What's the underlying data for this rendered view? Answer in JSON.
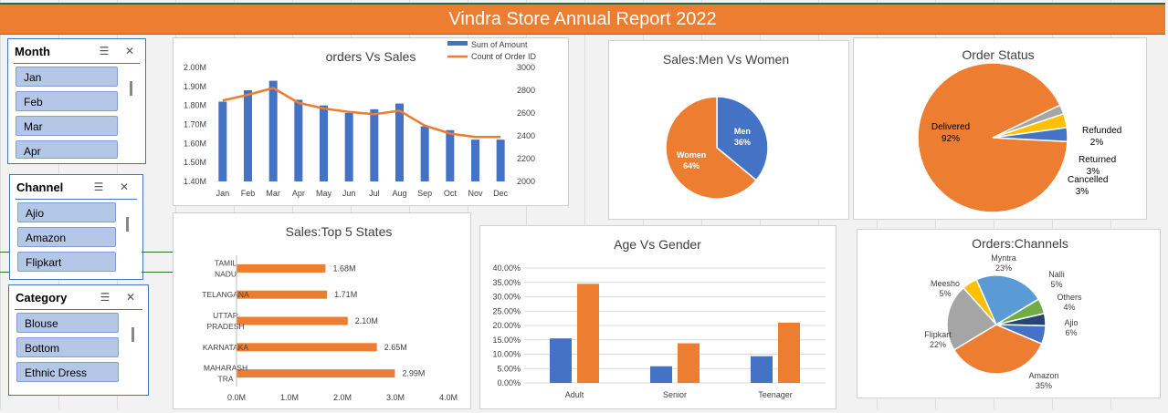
{
  "banner": {
    "title": "Vindra Store Annual Report 2022"
  },
  "slicers": {
    "month": {
      "title": "Month",
      "items": [
        "Jan",
        "Feb",
        "Mar",
        "Apr"
      ]
    },
    "channel": {
      "title": "Channel",
      "items": [
        "Ajio",
        "Amazon",
        "Flipkart"
      ]
    },
    "category": {
      "title": "Category",
      "items": [
        "Blouse",
        "Bottom",
        "Ethnic Dress"
      ]
    }
  },
  "colors": {
    "blue": "#4472c4",
    "orange": "#ed7d31",
    "gray": "#a5a5a5",
    "yellow": "#ffc000",
    "sky": "#5b9bd5",
    "green": "#70ad47",
    "navy": "#264478"
  },
  "chart_data": [
    {
      "id": "orders-vs-sales",
      "type": "bar",
      "title": "orders Vs Sales",
      "categories": [
        "Jan",
        "Feb",
        "Mar",
        "Apr",
        "May",
        "Jun",
        "Jul",
        "Aug",
        "Sep",
        "Oct",
        "Nov",
        "Dec"
      ],
      "series": [
        {
          "name": "Sum of Amount",
          "type": "bar",
          "axis": "left",
          "values": [
            1.82,
            1.88,
            1.93,
            1.83,
            1.8,
            1.76,
            1.78,
            1.81,
            1.69,
            1.67,
            1.62,
            1.62
          ]
        },
        {
          "name": "Count of Order ID",
          "type": "line",
          "axis": "right",
          "values": [
            2710,
            2760,
            2820,
            2690,
            2640,
            2610,
            2590,
            2620,
            2490,
            2420,
            2390,
            2390
          ]
        }
      ],
      "yleft": {
        "ylim": [
          1.4,
          2.0
        ],
        "ticks": [
          "1.40M",
          "1.50M",
          "1.60M",
          "1.70M",
          "1.80M",
          "1.90M",
          "2.00M"
        ]
      },
      "yright": {
        "ylim": [
          2000,
          3000
        ],
        "ticks": [
          "2000",
          "2200",
          "2400",
          "2600",
          "2800",
          "3000"
        ]
      },
      "legend": "top-right"
    },
    {
      "id": "sales-men-women",
      "type": "pie",
      "title": "Sales:Men Vs Women",
      "slices": [
        {
          "name": "Men",
          "value": 36,
          "label": "36%",
          "color": "#4472c4"
        },
        {
          "name": "Women",
          "value": 64,
          "label": "64%",
          "color": "#ed7d31"
        }
      ]
    },
    {
      "id": "order-status",
      "type": "pie",
      "title": "Order Status",
      "slices": [
        {
          "name": "Delivered",
          "value": 92,
          "label": "92%",
          "color": "#ed7d31"
        },
        {
          "name": "Refunded",
          "value": 2,
          "label": "2%",
          "color": "#a5a5a5"
        },
        {
          "name": "Returned",
          "value": 3,
          "label": "3%",
          "color": "#ffc000"
        },
        {
          "name": "Cancelled",
          "value": 3,
          "label": "3%",
          "color": "#4472c4"
        }
      ]
    },
    {
      "id": "top-5-states",
      "type": "bar",
      "orientation": "horizontal",
      "title": "Sales:Top 5 States",
      "categories": [
        [
          "TAMIL",
          "NADU"
        ],
        [
          "TELANGANA"
        ],
        [
          "UTTAR",
          "PRADESH"
        ],
        [
          "KARNATAKA"
        ],
        [
          "MAHARASH",
          "TRA"
        ]
      ],
      "values": [
        1.68,
        1.71,
        2.1,
        2.65,
        2.99
      ],
      "value_labels": [
        "1.68M",
        "1.71M",
        "2.10M",
        "2.65M",
        "2.99M"
      ],
      "xlim": [
        0,
        4.0
      ],
      "ticks": [
        "0.0M",
        "1.0M",
        "2.0M",
        "3.0M",
        "4.0M"
      ]
    },
    {
      "id": "age-vs-gender",
      "type": "bar",
      "title": "Age Vs Gender",
      "categories": [
        "Adult",
        "Senior",
        "Teenager"
      ],
      "series": [
        {
          "values": [
            15.5,
            5.8,
            9.3
          ],
          "color": "#4472c4"
        },
        {
          "values": [
            34.5,
            13.8,
            21.0
          ],
          "color": "#ed7d31"
        }
      ],
      "ylim": [
        0,
        40
      ],
      "ticks": [
        "0.00%",
        "5.00%",
        "10.00%",
        "15.00%",
        "20.00%",
        "25.00%",
        "30.00%",
        "35.00%",
        "40.00%"
      ]
    },
    {
      "id": "orders-channels",
      "type": "pie",
      "title": "Orders:Channels",
      "slices": [
        {
          "name": "Amazon",
          "value": 35,
          "label": "35%",
          "color": "#ed7d31"
        },
        {
          "name": "Flipkart",
          "value": 22,
          "label": "22%",
          "color": "#a5a5a5"
        },
        {
          "name": "Meesho",
          "value": 5,
          "label": "5%",
          "color": "#ffc000"
        },
        {
          "name": "Myntra",
          "value": 23,
          "label": "23%",
          "color": "#5b9bd5"
        },
        {
          "name": "Nalli",
          "value": 5,
          "label": "5%",
          "color": "#70ad47"
        },
        {
          "name": "Others",
          "value": 4,
          "label": "4%",
          "color": "#264478"
        },
        {
          "name": "Ajio",
          "value": 6,
          "label": "6%",
          "color": "#4472c4"
        }
      ]
    }
  ]
}
